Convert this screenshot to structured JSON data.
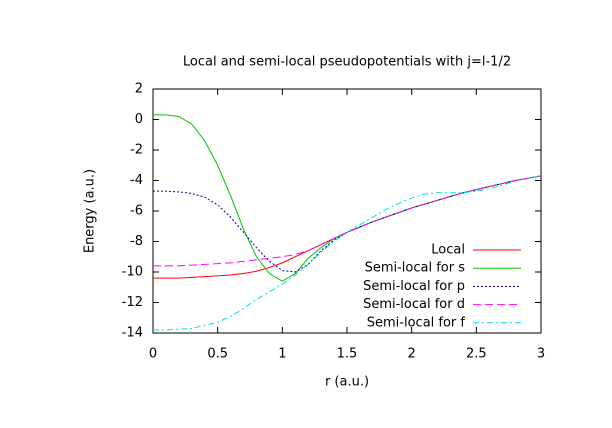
{
  "chart_data": {
    "type": "line",
    "title": "Local and semi-local pseudopotentials with j=l-1/2",
    "xlabel": "r (a.u.)",
    "ylabel": "Energy (a.u.)",
    "x": [
      0,
      0.1,
      0.2,
      0.3,
      0.4,
      0.5,
      0.6,
      0.7,
      0.8,
      0.9,
      1.0,
      1.1,
      1.2,
      1.3,
      1.4,
      1.5,
      1.6,
      1.7,
      1.8,
      1.9,
      2.0,
      2.1,
      2.2,
      2.3,
      2.4,
      2.5,
      2.6,
      2.7,
      2.8,
      2.9,
      3.0
    ],
    "series": [
      {
        "name": "Local",
        "color": "#ff0000",
        "values": [
          -10.4,
          -10.4,
          -10.4,
          -10.35,
          -10.3,
          -10.25,
          -10.2,
          -10.1,
          -9.95,
          -9.7,
          -9.4,
          -9.0,
          -8.6,
          -8.2,
          -7.8,
          -7.4,
          -7.05,
          -6.7,
          -6.4,
          -6.1,
          -5.8,
          -5.55,
          -5.3,
          -5.05,
          -4.8,
          -4.6,
          -4.4,
          -4.2,
          -4.0,
          -3.85,
          -3.7
        ]
      },
      {
        "name": "Semi-local for s",
        "color": "#00c000",
        "values": [
          0.3,
          0.3,
          0.2,
          -0.3,
          -1.4,
          -3.0,
          -5.0,
          -7.2,
          -9.0,
          -10.1,
          -10.6,
          -10.1,
          -9.1,
          -8.4,
          -7.8,
          -7.4,
          -7.05,
          -6.7,
          -6.4,
          -6.1,
          -5.8,
          -5.55,
          -5.3,
          -5.05,
          -4.8,
          -4.6,
          -4.4,
          -4.2,
          -4.0,
          -3.85,
          -3.7
        ]
      },
      {
        "name": "Semi-local for p",
        "color": "#0000a0",
        "values": [
          -4.7,
          -4.7,
          -4.75,
          -4.85,
          -5.1,
          -5.6,
          -6.4,
          -7.4,
          -8.4,
          -9.3,
          -9.9,
          -10.0,
          -9.5,
          -8.6,
          -7.9,
          -7.4,
          -7.05,
          -6.7,
          -6.4,
          -6.1,
          -5.8,
          -5.55,
          -5.3,
          -5.05,
          -4.8,
          -4.6,
          -4.4,
          -4.2,
          -4.0,
          -3.85,
          -3.7
        ]
      },
      {
        "name": "Semi-local for d",
        "color": "#ff00ff",
        "values": [
          -9.6,
          -9.6,
          -9.6,
          -9.55,
          -9.5,
          -9.45,
          -9.4,
          -9.3,
          -9.2,
          -9.1,
          -9.0,
          -8.85,
          -8.6,
          -8.2,
          -7.8,
          -7.4,
          -7.05,
          -6.7,
          -6.4,
          -6.1,
          -5.8,
          -5.55,
          -5.3,
          -5.05,
          -4.8,
          -4.6,
          -4.4,
          -4.2,
          -4.0,
          -3.85,
          -3.7
        ]
      },
      {
        "name": "Semi-local for f",
        "color": "#00dddd",
        "values": [
          -13.8,
          -13.8,
          -13.75,
          -13.7,
          -13.5,
          -13.3,
          -12.9,
          -12.4,
          -11.8,
          -11.3,
          -10.8,
          -10.2,
          -9.5,
          -8.7,
          -8.0,
          -7.4,
          -6.9,
          -6.4,
          -5.9,
          -5.5,
          -5.15,
          -4.9,
          -4.8,
          -4.8,
          -4.8,
          -4.7,
          -4.55,
          -4.3,
          -4.05,
          -3.85,
          -3.7
        ]
      }
    ],
    "xlim": [
      0,
      3
    ],
    "xticks": [
      0,
      0.5,
      1,
      1.5,
      2,
      2.5,
      3
    ],
    "ylim": [
      -14,
      2
    ],
    "yticks": [
      -14,
      -12,
      -10,
      -8,
      -6,
      -4,
      -2,
      0,
      2
    ],
    "legend": "lower right"
  }
}
